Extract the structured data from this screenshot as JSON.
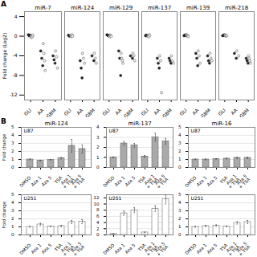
{
  "chart_data": [
    {
      "type": "scatter",
      "title": "miR-7",
      "panel_label": "A",
      "ylabel": "Fold change (Log2)",
      "categories": [
        "GLI",
        "AA",
        "GBM"
      ],
      "ylim": [
        -13,
        5
      ],
      "yticks": [
        -12,
        -8,
        -4,
        0,
        4
      ],
      "series": [
        {
          "marker": "filled_circle",
          "color": "#222222",
          "values": [
            [
              0.3,
              0.1,
              0.2,
              0.15
            ],
            [
              -3.0,
              -4.5,
              -6.0
            ],
            [
              -4.0,
              -4.8,
              -5.5
            ]
          ]
        },
        {
          "marker": "open_circle",
          "color": "#555555",
          "values": [
            [
              0.0,
              -0.3,
              0.1,
              -0.1,
              0.2
            ],
            [
              -1.5,
              -3.5,
              -5.0,
              -7.0
            ],
            [
              -3.0,
              -4.2,
              -6.5
            ]
          ]
        }
      ]
    },
    {
      "type": "scatter",
      "title": "miR-124",
      "categories": [
        "GLI",
        "AA",
        "GBM"
      ],
      "ylim": [
        -13,
        5
      ],
      "tick_labels": "x",
      "series": [
        {
          "marker": "filled_circle",
          "color": "#222222",
          "values": [
            [
              0.2,
              0.0,
              0.1
            ],
            [
              -5.0,
              -6.5,
              -8.5
            ],
            [
              -4.0,
              -5.0
            ]
          ]
        },
        {
          "marker": "open_circle",
          "color": "#555555",
          "values": [
            [
              0.1,
              -0.1,
              0.3,
              0.0
            ],
            [
              -3.5,
              -4.5,
              -5.5
            ],
            [
              -3.5,
              -4.5,
              -5.5
            ]
          ]
        }
      ]
    },
    {
      "type": "scatter",
      "title": "miR-129",
      "categories": [
        "GLI",
        "AA",
        "GBM"
      ],
      "ylim": [
        -13,
        5
      ],
      "tick_labels": "x",
      "series": [
        {
          "marker": "filled_circle",
          "color": "#222222",
          "values": [
            [
              0.3,
              0.2,
              0.1,
              0.15
            ],
            [
              -3.0,
              -4.5,
              -8.0
            ],
            [
              -4.0,
              -4.5
            ]
          ]
        },
        {
          "marker": "open_circle",
          "color": "#555555",
          "values": [
            [
              0.0,
              -0.1,
              0.2,
              0.1,
              -0.05
            ],
            [
              -3.5,
              -4.5,
              -5.0,
              -5.5
            ],
            [
              -3.5,
              -4.0,
              -5.0
            ]
          ]
        }
      ]
    },
    {
      "type": "scatter",
      "title": "miR-137",
      "categories": [
        "GLI",
        "AA",
        "GBM"
      ],
      "ylim": [
        -13,
        5
      ],
      "tick_labels": "x",
      "series": [
        {
          "marker": "filled_circle",
          "color": "#222222",
          "values": [
            [
              0.1,
              0.2,
              0.15,
              0.05
            ],
            [
              -4.5,
              -5.5,
              -6.5
            ],
            [
              -4.5,
              -5.0,
              -5.5
            ]
          ]
        },
        {
          "marker": "open_circle",
          "color": "#555555",
          "values": [
            [
              0.0,
              -0.1,
              0.3,
              0.1
            ],
            [
              -4.0,
              -5.0,
              -11.5
            ],
            [
              -4.0,
              -5.0,
              -5.5
            ]
          ]
        }
      ]
    },
    {
      "type": "scatter",
      "title": "miR-139",
      "categories": [
        "GLI",
        "AA",
        "GBM"
      ],
      "ylim": [
        -13,
        5
      ],
      "tick_labels": "x",
      "series": [
        {
          "marker": "filled_circle",
          "color": "#222222",
          "values": [
            [
              0.1,
              0.2,
              0.15,
              0.3
            ],
            [
              -3.5,
              -4.5,
              -6.0
            ],
            [
              -4.0,
              -5.0,
              -5.5
            ]
          ]
        },
        {
          "marker": "open_circle",
          "color": "#555555",
          "values": [
            [
              0.3,
              0.1,
              0.2,
              0.0,
              -0.1
            ],
            [
              -3.0,
              -4.0,
              -5.5
            ],
            [
              -3.5,
              -4.5,
              -5.0
            ]
          ]
        }
      ]
    },
    {
      "type": "scatter",
      "title": "miR-218",
      "categories": [
        "GLI",
        "AA",
        "GBM"
      ],
      "ylim": [
        -13,
        5
      ],
      "tick_labels": "x",
      "series": [
        {
          "marker": "filled_circle",
          "color": "#222222",
          "values": [
            [
              0.1,
              0.15,
              0.2,
              0.3
            ],
            [
              -3.5,
              -4.5
            ],
            [
              -4.5,
              -5.0,
              -5.5
            ]
          ]
        },
        {
          "marker": "open_circle",
          "color": "#555555",
          "values": [
            [
              0.2,
              0.0,
              0.1,
              0.15
            ],
            [
              -3.0,
              -4.0
            ],
            [
              -4.0,
              -4.5,
              -5.0,
              -5.5
            ]
          ]
        }
      ]
    },
    {
      "type": "bar",
      "title": "miR-124",
      "panel_label": "B",
      "ylabel": "Fold change",
      "annotations": [
        "U87"
      ],
      "color": "#aaaaaa",
      "grid": true,
      "categories": [
        "DMSO",
        "Aza 1",
        "Aza 5",
        "TSA",
        "Aza 1\n+ TSA",
        "Aza 5\n+ TSA"
      ],
      "values": [
        1.0,
        0.85,
        0.95,
        1.15,
        2.7,
        2.3
      ],
      "errors": [
        0.05,
        0.05,
        0.05,
        0.1,
        0.8,
        0.5
      ],
      "ylim": [
        0,
        5
      ],
      "yticks": [
        0,
        1,
        2,
        3,
        4,
        5
      ]
    },
    {
      "type": "bar",
      "ylabel": "Fold change",
      "annotations": [
        "U251"
      ],
      "color": "#ffffff",
      "grid": true,
      "categories": [
        "DMSO",
        "Aza 1",
        "Aza 5",
        "TSA",
        "Aza 1\n+ TSA",
        "Aza 5\n+ TSA"
      ],
      "values": [
        1.0,
        1.3,
        1.05,
        1.1,
        1.6,
        1.65
      ],
      "errors": [
        0.05,
        0.15,
        0.05,
        0.1,
        0.2,
        0.25
      ],
      "ylim": [
        0,
        5
      ],
      "yticks": [
        0,
        1,
        2,
        3,
        4,
        5
      ]
    },
    {
      "type": "bar",
      "title": "miR-137",
      "annotations": [
        "U87"
      ],
      "color": "#aaaaaa",
      "grid": true,
      "categories": [
        "DMSO",
        "Aza 1",
        "Aza 5",
        "TSA",
        "Aza 1\n+ TSA",
        "Aza 5\n+ TSA"
      ],
      "values": [
        1.0,
        2.4,
        2.2,
        1.1,
        3.0,
        2.6
      ],
      "errors": [
        0.05,
        0.2,
        0.2,
        0.1,
        0.4,
        0.3
      ],
      "ylim": [
        0,
        4
      ],
      "yticks": [
        0,
        1,
        2,
        3,
        4
      ]
    },
    {
      "type": "bar",
      "annotations": [
        "U251"
      ],
      "color": "#ffffff",
      "grid": true,
      "categories": [
        "DMSO",
        "Aza 1",
        "Aza 5",
        "TSA",
        "Aza 1\n+ TSA",
        "Aza 5\n+ TSA"
      ],
      "values": [
        0.3,
        7.0,
        8.0,
        0.8,
        8.5,
        11.5
      ],
      "errors": [
        0.05,
        0.7,
        0.8,
        0.1,
        0.9,
        1.5
      ],
      "ylim": [
        0,
        13
      ],
      "yticks": [
        0,
        2,
        4,
        6,
        8,
        10,
        12
      ]
    },
    {
      "type": "bar",
      "title": "miR-16",
      "annotations": [
        "U87"
      ],
      "color": "#aaaaaa",
      "grid": true,
      "categories": [
        "DMSO",
        "Aza 1",
        "Aza 5",
        "TSA",
        "Aza 1\n+ TSA",
        "Aza 5\n+ TSA"
      ],
      "values": [
        1.0,
        1.0,
        1.05,
        1.1,
        1.2,
        1.2
      ],
      "errors": [
        0.05,
        0.05,
        0.05,
        0.05,
        0.1,
        0.1
      ],
      "ylim": [
        0,
        5
      ],
      "yticks": [
        0,
        1,
        2,
        3,
        4,
        5
      ]
    },
    {
      "type": "bar",
      "annotations": [
        "U251"
      ],
      "color": "#ffffff",
      "grid": true,
      "categories": [
        "DMSO",
        "Aza 1",
        "Aza 5",
        "TSA",
        "Aza 1\n+ TSA",
        "Aza 5\n+ TSA"
      ],
      "values": [
        1.0,
        1.1,
        1.15,
        1.05,
        1.5,
        1.6
      ],
      "errors": [
        0.05,
        0.1,
        0.1,
        0.05,
        0.15,
        0.2
      ],
      "ylim": [
        0,
        5
      ],
      "yticks": [
        0,
        1,
        2,
        3,
        4,
        5
      ]
    }
  ]
}
